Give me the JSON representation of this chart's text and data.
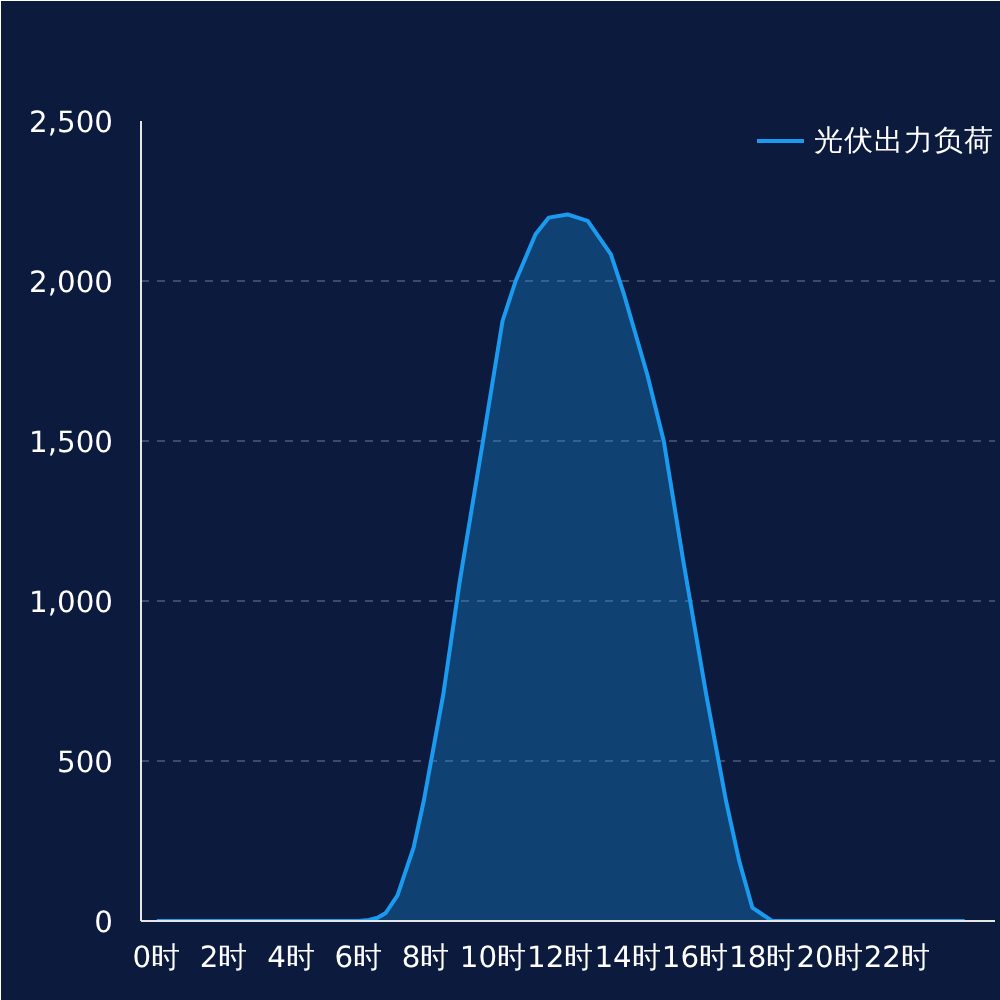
{
  "chart_data": {
    "type": "area",
    "legend": "top right",
    "grid": "y",
    "marker": "none",
    "line_style": "solid",
    "xlim": [
      -0.47,
      24.9
    ],
    "ylim": [
      0,
      2500
    ],
    "xticks": [
      {
        "value": 0,
        "label": "0时"
      },
      {
        "value": 2,
        "label": "2时"
      },
      {
        "value": 4,
        "label": "4时"
      },
      {
        "value": 6,
        "label": "6时"
      },
      {
        "value": 8,
        "label": "8时"
      },
      {
        "value": 10,
        "label": "10时"
      },
      {
        "value": 12,
        "label": "12时"
      },
      {
        "value": 14,
        "label": "14时"
      },
      {
        "value": 16,
        "label": "16时"
      },
      {
        "value": 18,
        "label": "18时"
      },
      {
        "value": 20,
        "label": "20时"
      },
      {
        "value": 22,
        "label": "22时"
      }
    ],
    "yticks": [
      {
        "value": 0,
        "label": "0"
      },
      {
        "value": 500,
        "label": "500"
      },
      {
        "value": 1000,
        "label": "1,000"
      },
      {
        "value": 1500,
        "label": "1,500"
      },
      {
        "value": 2000,
        "label": "2,000"
      },
      {
        "value": 2500,
        "label": "2,500"
      }
    ],
    "x": [
      0,
      1,
      2,
      3,
      4,
      5,
      6,
      6.3,
      6.56,
      6.8,
      7.15,
      7.63,
      7.93,
      8.51,
      9.0,
      9.69,
      10.27,
      10.66,
      11.25,
      11.64,
      12.2,
      12.8,
      13.49,
      13.88,
      14.57,
      15.06,
      15.64,
      16.32,
      16.91,
      17.3,
      17.69,
      18.28,
      19,
      20,
      21,
      22,
      23,
      24
    ],
    "series": [
      {
        "name": "光伏出力负荷",
        "color": "#1a9bf0",
        "values": [
          0,
          0,
          0,
          0,
          0,
          0,
          0,
          3,
          10,
          25,
          80,
          230,
          375,
          708,
          1062,
          1500,
          1875,
          2000,
          2146,
          2198,
          2208,
          2188,
          2083,
          1958,
          1708,
          1500,
          1125,
          708,
          375,
          188,
          42,
          0,
          0,
          0,
          0,
          0,
          0,
          0
        ]
      }
    ]
  }
}
